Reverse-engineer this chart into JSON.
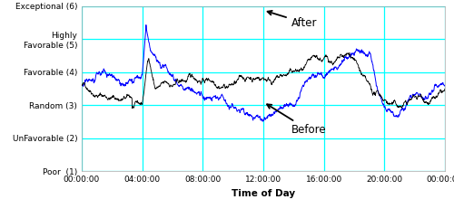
{
  "title": "",
  "xlabel": "Time of Day",
  "ytick_labels": [
    "Poor  (1)",
    "UnFavorable (2)",
    "Random (3)",
    "Favorable (4)",
    "Highly\nFavorable (5)",
    "Exceptional (6)"
  ],
  "ytick_positions": [
    1,
    2,
    3,
    4,
    5,
    6
  ],
  "xtick_labels": [
    "00:00:00",
    "04:00:00",
    "08:00:00",
    "12:00:00",
    "16:00:00",
    "20:00:00",
    "00:00:00"
  ],
  "after_label": "After",
  "before_label": "Before",
  "after_color": "#000000",
  "before_color": "#0000ff",
  "grid_color": "#00ffff",
  "background_color": "#ffffff",
  "fig_width": 5.0,
  "fig_height": 2.31,
  "dpi": 100,
  "xlim": [
    0,
    1440
  ],
  "ylim": [
    1,
    6
  ],
  "num_points": 1440
}
